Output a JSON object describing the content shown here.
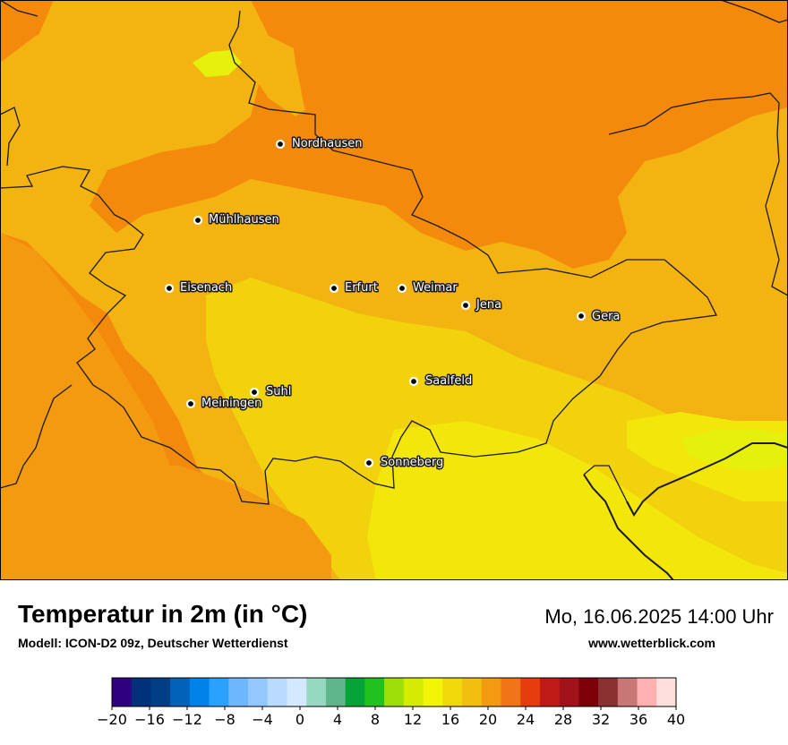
{
  "map": {
    "cities": [
      {
        "name": "Nordhausen"
      },
      {
        "name": "Mühlhausen"
      },
      {
        "name": "Eisenach"
      },
      {
        "name": "Erfurt"
      },
      {
        "name": "Weimar"
      },
      {
        "name": "Jena"
      },
      {
        "name": "Gera"
      },
      {
        "name": "Suhl"
      },
      {
        "name": "Meiningen"
      },
      {
        "name": "Saalfeld"
      },
      {
        "name": "Sonneberg"
      }
    ],
    "colors": {
      "base": "#f48a0c",
      "warm_orange": "#f39a10",
      "amber": "#f3b311",
      "yellow": "#f2d20d",
      "pale_yellow": "#f2e60a",
      "lime": "#e5f10a",
      "border": "#1a1a1a"
    }
  },
  "header": {
    "title": "Temperatur in 2m (in °C)",
    "model": "Modell: ICON-D2 09z, Deutscher Wetterdienst",
    "datetime": "Mo, 16.06.2025 14:00 Uhr",
    "website": "www.wetterblick.com"
  },
  "legend": {
    "colors": [
      "#2f007f",
      "#00317a",
      "#003f86",
      "#0063b9",
      "#0083e8",
      "#2aa1ff",
      "#6db7ff",
      "#92c8ff",
      "#b8dbff",
      "#d4e8ff",
      "#95d9c0",
      "#5fb58c",
      "#06a437",
      "#21c21d",
      "#9edf0a",
      "#d3ec02",
      "#f3f506",
      "#f1d80a",
      "#f2be0f",
      "#f39a10",
      "#f27418",
      "#e63d0f",
      "#bf1a15",
      "#a2121b",
      "#7d0008",
      "#8a3030",
      "#c87676",
      "#ffb0b0",
      "#ffdede"
    ],
    "tick_labels": [
      "−20",
      "−16",
      "−12",
      "−8",
      "−4",
      "0",
      "4",
      "8",
      "12",
      "16",
      "20",
      "24",
      "28",
      "32",
      "36",
      "40"
    ]
  }
}
